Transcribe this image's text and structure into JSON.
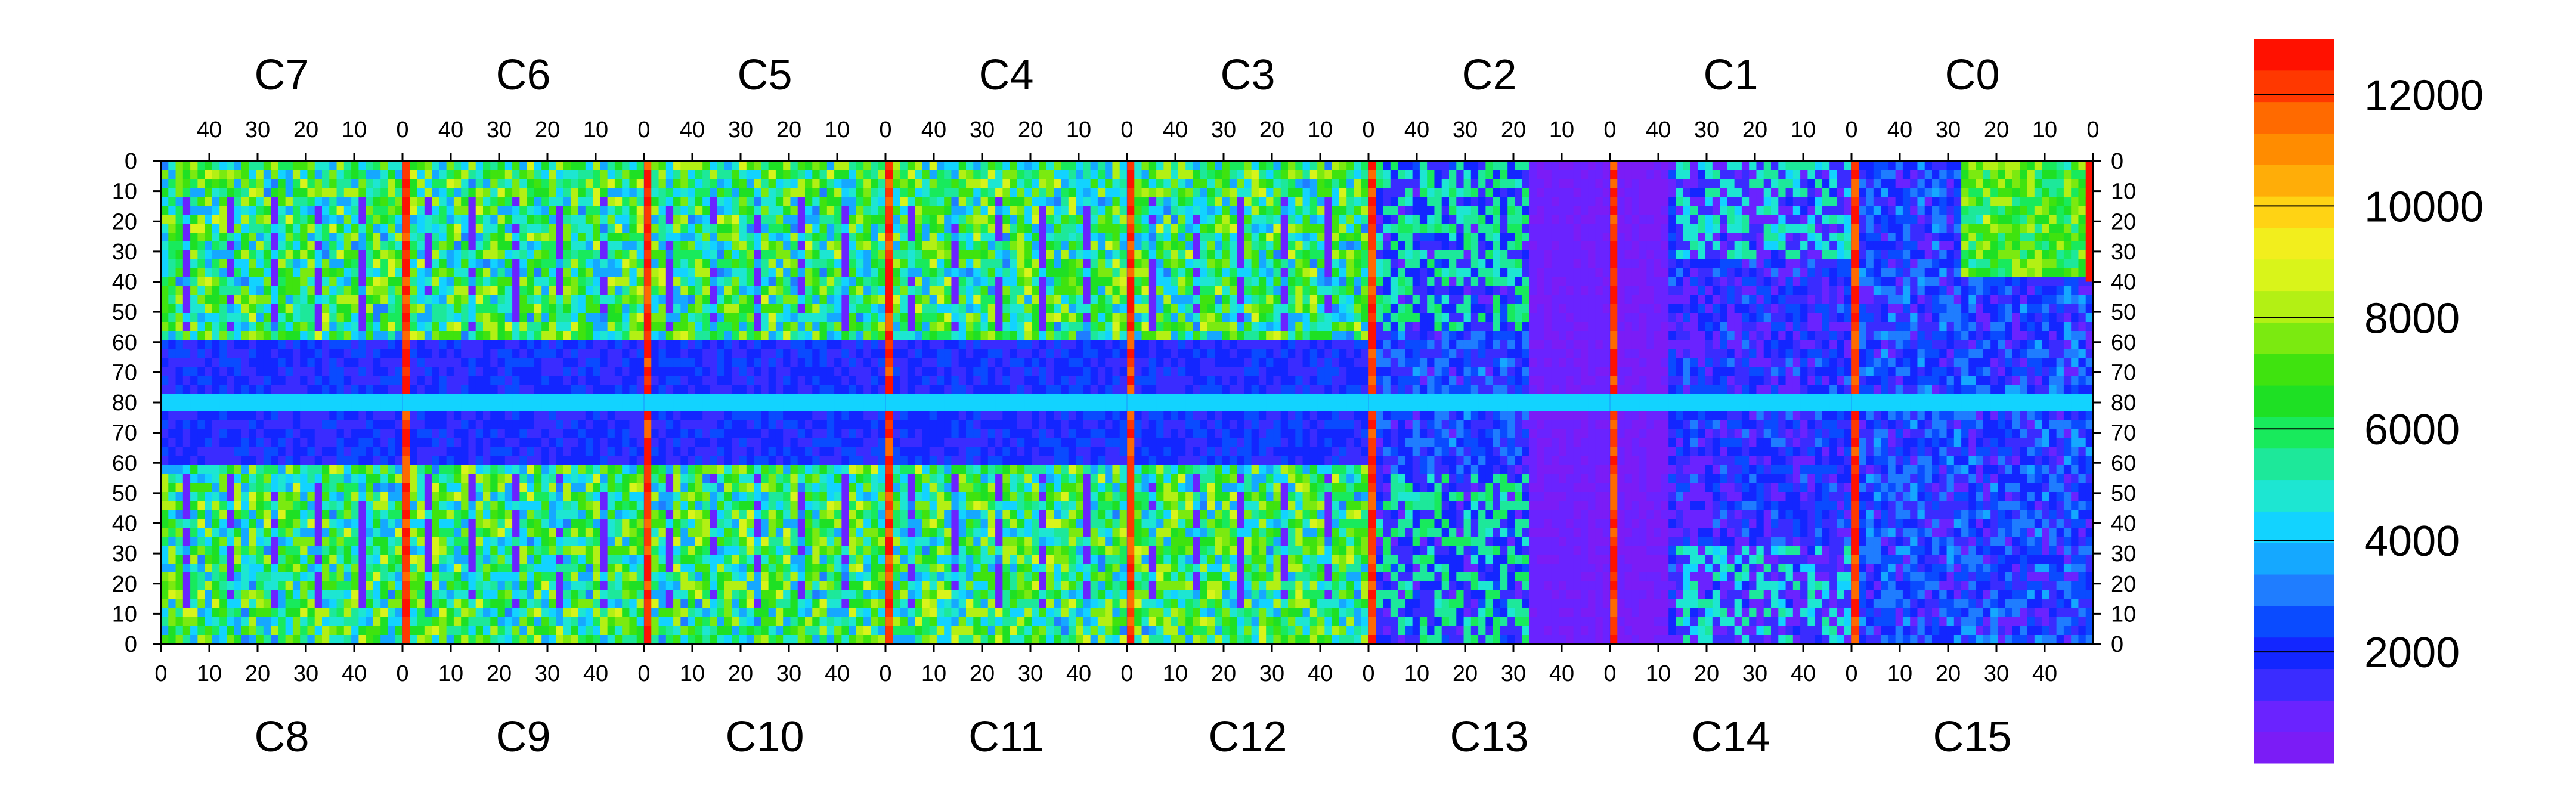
{
  "chart_data": {
    "type": "heatmap",
    "title": "",
    "top_labels": [
      "C7",
      "C6",
      "C5",
      "C4",
      "C3",
      "C2",
      "C1",
      "C0"
    ],
    "bottom_labels": [
      "C8",
      "C9",
      "C10",
      "C11",
      "C12",
      "C13",
      "C14",
      "C15"
    ],
    "top_x_ticks": [
      "40",
      "30",
      "20",
      "10",
      "0"
    ],
    "bottom_x_ticks": [
      "0",
      "10",
      "20",
      "30",
      "40"
    ],
    "y_ticks": [
      "0",
      "10",
      "20",
      "30",
      "40",
      "50",
      "60",
      "70",
      "80",
      "70",
      "60",
      "50",
      "40",
      "30",
      "20",
      "10",
      "0"
    ],
    "x_range_per_column": [
      0,
      50
    ],
    "y_range": [
      0,
      80
    ],
    "colorbar": {
      "range": [
        0,
        13000
      ],
      "tick_labels": [
        "12000",
        "10000",
        "8000",
        "6000",
        "4000",
        "2000"
      ],
      "colors": [
        "#7b1cf6",
        "#6a23ff",
        "#3a2cff",
        "#1326ff",
        "#0a4bff",
        "#1f7dff",
        "#15a8ff",
        "#12d3ff",
        "#1de6d2",
        "#1de89a",
        "#18ea5c",
        "#1ee024",
        "#3fe30f",
        "#7bea10",
        "#b3f014",
        "#d9f41a",
        "#f2ee1d",
        "#ffd314",
        "#ffad08",
        "#ff8c00",
        "#ff6a00",
        "#ff3800",
        "#ff1100"
      ]
    },
    "regions": [
      {
        "label": "C7 / C8",
        "typical_value": 6000,
        "hot_strip_value": 12500
      },
      {
        "label": "C6 / C9",
        "typical_value": 6000,
        "hot_strip_value": 12500
      },
      {
        "label": "C5 / C10",
        "typical_value": 6000,
        "hot_strip_value": 12500
      },
      {
        "label": "C4 / C11",
        "typical_value": 6000,
        "hot_strip_value": 12500
      },
      {
        "label": "C3 / C12",
        "typical_value": 6000,
        "hot_strip_value": 12500
      },
      {
        "label": "C2 / C13",
        "typical_value": 1000,
        "hot_strip_value": 12500
      },
      {
        "label": "C1 / C14",
        "typical_value": 1500,
        "hot_strip_value": 12500
      },
      {
        "label": "C0 / C15",
        "typical_value": 2000,
        "hot_strip_value": 12500
      }
    ]
  }
}
